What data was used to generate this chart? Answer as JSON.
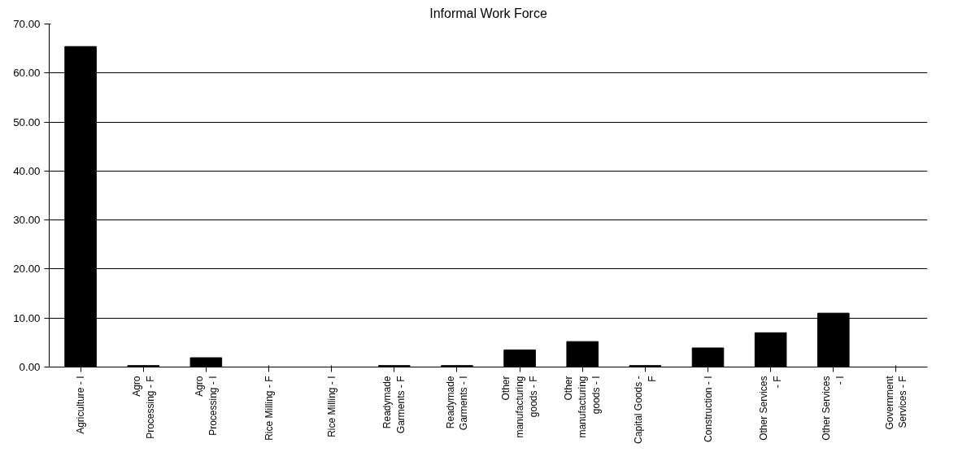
{
  "chart_data": {
    "type": "bar",
    "title": "Informal Work Force",
    "categories": [
      "Agriculture - I",
      "Agro\nProcessing - F",
      "Agro\nProcessing - I",
      "Rice Milling - F",
      "Rice Milling - I",
      "Readymade\nGarments - F",
      "Readymade\nGarments - I",
      "Other\nmanufacturing\ngoods - F",
      "Other\nmanufacturing\ngoods - I",
      "Capital Goods -\nF",
      "Construction - I",
      "Other Services\n- F",
      "Other Services\n- I",
      "Government\nServices - F"
    ],
    "values": [
      65.4,
      0.3,
      1.9,
      0,
      0,
      0.3,
      0.3,
      3.5,
      5.2,
      0.3,
      3.9,
      7.0,
      11.0,
      0
    ],
    "color": "#000000",
    "ylim": [
      0,
      70
    ],
    "yticks": [
      {
        "value": 0,
        "label": "0.00"
      },
      {
        "value": 10,
        "label": "10.00"
      },
      {
        "value": 20,
        "label": "20.00"
      },
      {
        "value": 30,
        "label": "30.00"
      },
      {
        "value": 40,
        "label": "40.00"
      },
      {
        "value": 50,
        "label": "50.00"
      },
      {
        "value": 60,
        "label": "60.00"
      },
      {
        "value": 70,
        "label": "70.00"
      }
    ],
    "grid": "y"
  }
}
